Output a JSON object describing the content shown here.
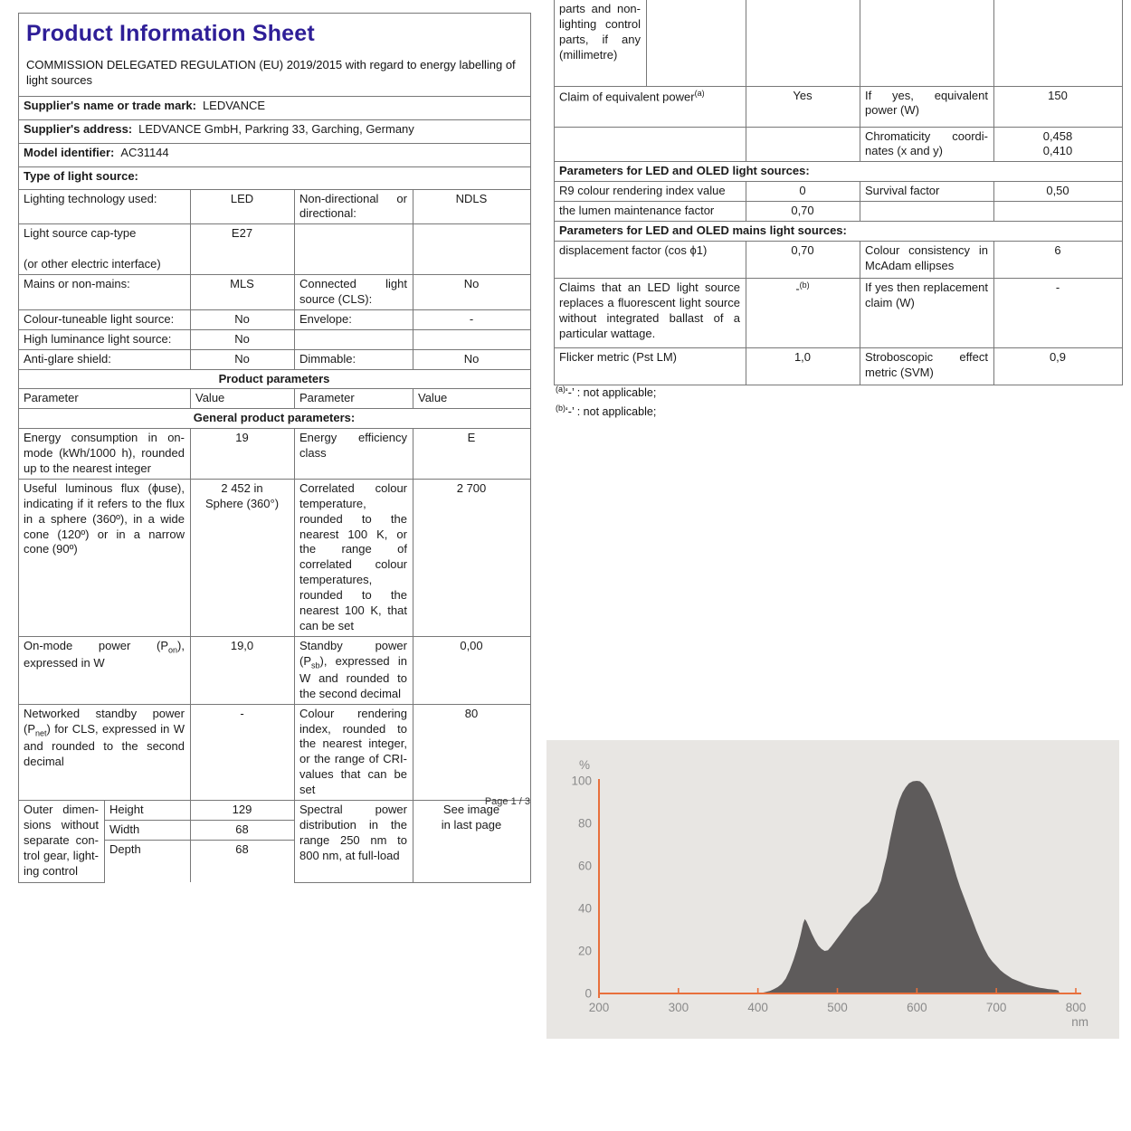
{
  "header": {
    "title": "Product Information Sheet",
    "subtitle": "COMMISSION DELEGATED REGULATION (EU) 2019/2015 with regard to energy labelling of light sources"
  },
  "info": {
    "supplier_name": {
      "label": "Supplier's name or trade mark:",
      "value": "LEDVANCE"
    },
    "supplier_address": {
      "label": "Supplier's address:",
      "value": "LEDVANCE GmbH, Parkring 33, Garching, Germany"
    },
    "model": {
      "label": "Model identifier:",
      "value": "AC31144"
    },
    "type_heading": "Type of light source:"
  },
  "type_rows": {
    "r1": {
      "l1": "Lighting technology used:",
      "v1": "LED",
      "l2": "Non-directional or directional:",
      "v2": "NDLS"
    },
    "r2": {
      "l1a": "Light source cap-type",
      "l1b": "(or other electric interface)",
      "v1": "E27",
      "l2": "",
      "v2": ""
    },
    "r3": {
      "l1": "Mains or non-mains:",
      "v1": "MLS",
      "l2": "Connected light source (CLS):",
      "v2": "No"
    },
    "r4": {
      "l1": "Colour-tuneable light source:",
      "v1": "No",
      "l2": "Envelope:",
      "v2": "-"
    },
    "r5": {
      "l1": "High luminance light source:",
      "v1": "No",
      "l2": "",
      "v2": ""
    },
    "r6": {
      "l1": "Anti-glare shield:",
      "v1": "No",
      "l2": "Dimmable:",
      "v2": "No"
    }
  },
  "pp": {
    "section": "Product parameters",
    "head": {
      "p1": "Parameter",
      "v1": "Value",
      "p2": "Parameter",
      "v2": "Value"
    },
    "general": "General product parameters:",
    "energy": {
      "l1": "Energy consumption in on-mode (kWh/1000 h), rounded up to the nearest integer",
      "v1": "19",
      "l2": "Energy efficiency class",
      "v2": "E"
    },
    "flux": {
      "l1": "Useful luminous flux (ϕuse), indicating if it refers to the flux in a sphere (360º), in a wide cone (120º) or in a narrow cone (90º)",
      "v1a": "2 452 in",
      "v1b": "Sphere (360°)",
      "l2": "Correlated colour temperature, rounded to the nearest 100 K, or the range of correlated colour temperatures, rounded to the nearest 100 K, that can be set",
      "v2": "2 700"
    },
    "onmode": {
      "l1a": "On-mode power (P",
      "l1sub": "on",
      "l1b": "), expressed in W",
      "v1": "19,0",
      "l2a": "Standby power (P",
      "l2sub": "sb",
      "l2b": "), expressed in W and rounded to the second decimal",
      "v2": "0,00"
    },
    "net": {
      "l1a": "Networked standby power (P",
      "l1sub": "net",
      "l1b": ") for CLS, expressed in W and rounded to the second decimal",
      "v1": "-",
      "l2": "Colour rendering index, rounded to the nearest integer, or the range of CRI-values that can be set",
      "v2": "80"
    },
    "dims": {
      "label": "Outer dimen­sions without separate con­trol gear, light­ing control",
      "h_label": "Height",
      "h_val": "129",
      "w_label": "Width",
      "w_val": "68",
      "d_label": "Depth",
      "d_val": "68",
      "l2": "Spectral power distribution in the range 250 nm to 800 nm, at full-load",
      "v2a": "See image",
      "v2b": "in last page"
    }
  },
  "right": {
    "cont_text": "parts and non-lighting con­trol parts, if any (millime­tre)",
    "claim": {
      "l1": "Claim of equivalent power",
      "l1sup": "(a)",
      "v1": "Yes",
      "l2": "If yes, equivalent power (W)",
      "v2": "150"
    },
    "chroma": {
      "l2": "Chromaticity coordi­nates (x and y)",
      "v2a": "0,458",
      "v2b": "0,410"
    },
    "sec1": "Parameters for LED and OLED light sources:",
    "r9": {
      "l1": "R9 colour rendering index value",
      "v1": "0",
      "l2": "Survival factor",
      "v2": "0,50"
    },
    "lumen": {
      "l1": "the lumen maintenance factor",
      "v1": "0,70"
    },
    "sec2": "Parameters for LED and OLED mains light sources:",
    "disp": {
      "l1": "displacement factor (cos ϕ1)",
      "v1": "0,70",
      "l2": "Colour consistency in McAdam ellipses",
      "v2": "6"
    },
    "fluor": {
      "l1": "Claims that an LED light source replaces a fluorescent light source without integrated bal­last of a particular wattage.",
      "v1a": "-",
      "v1sup": "(b)",
      "l2": "If yes then replace­ment claim (W)",
      "v2": "-"
    },
    "flicker": {
      "l1": "Flicker metric (Pst LM)",
      "v1": "1,0",
      "l2": "Stroboscopic effect metric (SVM)",
      "v2": "0,9"
    },
    "fn_a_sup": "(a)",
    "fn_a": "‘-’ : not applicable;",
    "fn_b_sup": "(b)",
    "fn_b": "‘-’ : not applicable;"
  },
  "footer": {
    "page": "Page 1 / 3"
  },
  "chart_data": {
    "type": "area",
    "title": "Spectral power distribution",
    "xlabel": "nm",
    "ylabel": "%",
    "xlim": [
      200,
      800
    ],
    "ylim": [
      0,
      100
    ],
    "x_ticks": [
      200,
      300,
      400,
      500,
      600,
      700,
      800
    ],
    "y_ticks": [
      0,
      20,
      40,
      60,
      80,
      100
    ],
    "grid": false,
    "legend": false,
    "colors": {
      "panel": "#e8e6e3",
      "axis": "#e8703c",
      "area": "#5e5b5b",
      "labels": "#8a8a8a"
    },
    "points": [
      [
        250,
        0
      ],
      [
        300,
        0
      ],
      [
        350,
        0
      ],
      [
        400,
        0
      ],
      [
        408,
        0.5
      ],
      [
        415,
        1.2
      ],
      [
        420,
        2
      ],
      [
        425,
        3
      ],
      [
        430,
        4.5
      ],
      [
        435,
        7
      ],
      [
        440,
        11
      ],
      [
        445,
        16
      ],
      [
        450,
        22
      ],
      [
        454,
        28
      ],
      [
        457,
        33
      ],
      [
        459,
        35
      ],
      [
        461,
        34
      ],
      [
        464,
        31.5
      ],
      [
        468,
        28
      ],
      [
        472,
        25
      ],
      [
        476,
        22.5
      ],
      [
        480,
        21
      ],
      [
        484,
        20
      ],
      [
        488,
        20.3
      ],
      [
        492,
        22
      ],
      [
        496,
        24
      ],
      [
        500,
        26
      ],
      [
        505,
        28.5
      ],
      [
        510,
        31
      ],
      [
        515,
        33.5
      ],
      [
        520,
        36
      ],
      [
        525,
        38
      ],
      [
        530,
        40
      ],
      [
        535,
        41.5
      ],
      [
        540,
        43
      ],
      [
        545,
        45.5
      ],
      [
        550,
        48
      ],
      [
        555,
        53
      ],
      [
        558,
        58
      ],
      [
        562,
        64
      ],
      [
        566,
        72
      ],
      [
        570,
        79
      ],
      [
        574,
        86
      ],
      [
        578,
        91
      ],
      [
        582,
        94.5
      ],
      [
        586,
        97
      ],
      [
        590,
        98.8
      ],
      [
        595,
        99.8
      ],
      [
        600,
        100
      ],
      [
        604,
        99.8
      ],
      [
        608,
        98.5
      ],
      [
        612,
        96.5
      ],
      [
        616,
        94
      ],
      [
        620,
        90.5
      ],
      [
        625,
        85.5
      ],
      [
        630,
        80
      ],
      [
        635,
        74
      ],
      [
        640,
        68
      ],
      [
        645,
        61.5
      ],
      [
        650,
        55
      ],
      [
        655,
        49.5
      ],
      [
        660,
        44.5
      ],
      [
        665,
        39.5
      ],
      [
        670,
        34.5
      ],
      [
        675,
        29.5
      ],
      [
        680,
        25
      ],
      [
        685,
        21
      ],
      [
        690,
        17.5
      ],
      [
        695,
        15
      ],
      [
        700,
        13
      ],
      [
        705,
        11
      ],
      [
        710,
        9.5
      ],
      [
        715,
        8.2
      ],
      [
        720,
        7
      ],
      [
        725,
        6.2
      ],
      [
        730,
        5.5
      ],
      [
        735,
        4.7
      ],
      [
        740,
        4
      ],
      [
        745,
        3.5
      ],
      [
        750,
        3
      ],
      [
        755,
        2.7
      ],
      [
        760,
        2.4
      ],
      [
        765,
        2.1
      ],
      [
        770,
        1.9
      ],
      [
        775,
        1.7
      ],
      [
        778,
        1.4
      ],
      [
        780,
        0
      ]
    ]
  }
}
